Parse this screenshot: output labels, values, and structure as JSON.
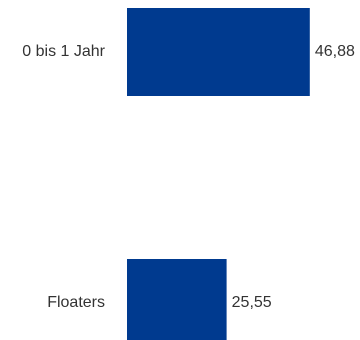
{
  "chart_data": {
    "type": "bar",
    "orientation": "horizontal",
    "categories": [
      "0 bis 1 Jahr",
      "Floaters"
    ],
    "values": [
      46.88,
      25.55
    ],
    "value_labels": [
      "46,88",
      "25,55"
    ],
    "xlim": [
      0,
      50
    ],
    "grid": false,
    "legend": "none",
    "bar_color": "#003a8f",
    "text_color": "#333333"
  }
}
